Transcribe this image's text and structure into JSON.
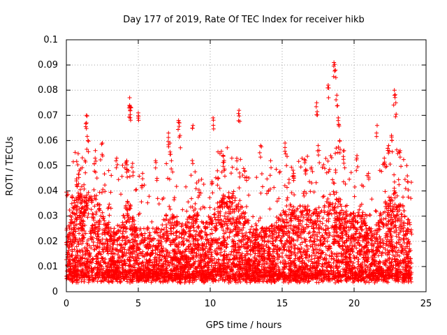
{
  "chart_data": {
    "type": "scatter",
    "title": "Day 177 of 2019, Rate Of TEC Index for receiver hikb",
    "xlabel": "GPS time / hours",
    "ylabel": "ROTI / TECUs",
    "xlim": [
      0,
      25
    ],
    "ylim": [
      0,
      0.1
    ],
    "xticks": [
      "0",
      "5",
      "10",
      "15",
      "20",
      "25"
    ],
    "yticks": [
      "0",
      "0.01",
      "0.02",
      "0.03",
      "0.04",
      "0.05",
      "0.06",
      "0.07",
      "0.08",
      "0.09",
      "0.1"
    ],
    "grid": true,
    "marker": "+",
    "series_color": "#ff0000",
    "data_range_hours": [
      0,
      24
    ],
    "typical_range": [
      0.005,
      0.035
    ],
    "peaks": [
      {
        "x": 0.4,
        "y": 0.038
      },
      {
        "x": 0.7,
        "y": 0.044
      },
      {
        "x": 0.9,
        "y": 0.048
      },
      {
        "x": 1.4,
        "y": 0.07
      },
      {
        "x": 1.4,
        "y": 0.067
      },
      {
        "x": 1.5,
        "y": 0.06
      },
      {
        "x": 2.0,
        "y": 0.053
      },
      {
        "x": 2.5,
        "y": 0.059
      },
      {
        "x": 3.5,
        "y": 0.053
      },
      {
        "x": 4.2,
        "y": 0.052
      },
      {
        "x": 4.4,
        "y": 0.077
      },
      {
        "x": 4.4,
        "y": 0.074
      },
      {
        "x": 4.5,
        "y": 0.073
      },
      {
        "x": 5.0,
        "y": 0.071
      },
      {
        "x": 5.3,
        "y": 0.047
      },
      {
        "x": 6.2,
        "y": 0.052
      },
      {
        "x": 7.1,
        "y": 0.063
      },
      {
        "x": 7.2,
        "y": 0.059
      },
      {
        "x": 7.8,
        "y": 0.068
      },
      {
        "x": 7.9,
        "y": 0.062
      },
      {
        "x": 8.8,
        "y": 0.066
      },
      {
        "x": 9.2,
        "y": 0.044
      },
      {
        "x": 10.2,
        "y": 0.069
      },
      {
        "x": 10.5,
        "y": 0.048
      },
      {
        "x": 10.9,
        "y": 0.054
      },
      {
        "x": 11.5,
        "y": 0.053
      },
      {
        "x": 12.0,
        "y": 0.072
      },
      {
        "x": 12.4,
        "y": 0.048
      },
      {
        "x": 13.5,
        "y": 0.058
      },
      {
        "x": 14.2,
        "y": 0.052
      },
      {
        "x": 15.2,
        "y": 0.059
      },
      {
        "x": 15.8,
        "y": 0.047
      },
      {
        "x": 16.6,
        "y": 0.052
      },
      {
        "x": 17.4,
        "y": 0.075
      },
      {
        "x": 17.5,
        "y": 0.058
      },
      {
        "x": 18.2,
        "y": 0.082
      },
      {
        "x": 18.6,
        "y": 0.091
      },
      {
        "x": 18.7,
        "y": 0.088
      },
      {
        "x": 18.8,
        "y": 0.078
      },
      {
        "x": 18.9,
        "y": 0.069
      },
      {
        "x": 19.0,
        "y": 0.06
      },
      {
        "x": 19.3,
        "y": 0.056
      },
      {
        "x": 20.2,
        "y": 0.054
      },
      {
        "x": 21.0,
        "y": 0.047
      },
      {
        "x": 21.6,
        "y": 0.066
      },
      {
        "x": 22.1,
        "y": 0.053
      },
      {
        "x": 22.4,
        "y": 0.058
      },
      {
        "x": 22.6,
        "y": 0.062
      },
      {
        "x": 22.8,
        "y": 0.08
      },
      {
        "x": 22.9,
        "y": 0.075
      },
      {
        "x": 23.2,
        "y": 0.056
      },
      {
        "x": 23.7,
        "y": 0.046
      }
    ],
    "activity": [
      {
        "center": 0.9,
        "width": 0.6,
        "amp": 0.9
      },
      {
        "center": 2.0,
        "width": 0.7,
        "amp": 0.8
      },
      {
        "center": 4.3,
        "width": 0.4,
        "amp": 0.7
      },
      {
        "center": 7.2,
        "width": 0.5,
        "amp": 0.5
      },
      {
        "center": 8.8,
        "width": 0.5,
        "amp": 0.5
      },
      {
        "center": 10.9,
        "width": 0.9,
        "amp": 0.9
      },
      {
        "center": 12.0,
        "width": 0.6,
        "amp": 0.5
      },
      {
        "center": 15.5,
        "width": 1.0,
        "amp": 0.6
      },
      {
        "center": 16.8,
        "width": 0.8,
        "amp": 0.5
      },
      {
        "center": 18.6,
        "width": 0.9,
        "amp": 1.0
      },
      {
        "center": 20.3,
        "width": 0.5,
        "amp": 0.5
      },
      {
        "center": 22.7,
        "width": 0.9,
        "amp": 1.0
      }
    ]
  }
}
